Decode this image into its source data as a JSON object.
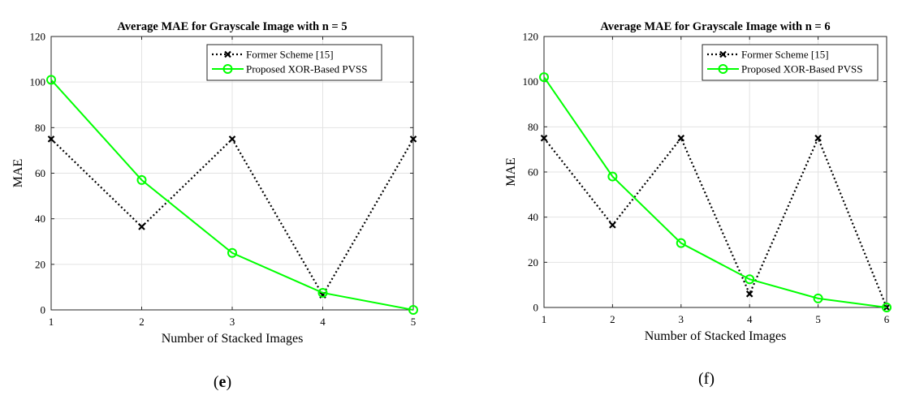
{
  "chart_data": [
    {
      "type": "line",
      "title": "Average MAE for Grayscale Image with n = 5",
      "xlabel": "Number of Stacked Images",
      "ylabel": "MAE",
      "x": [
        1,
        2,
        3,
        4,
        5
      ],
      "xlim": [
        1,
        5
      ],
      "ylim": [
        0,
        120
      ],
      "xticks": [
        "1",
        "2",
        "3",
        "4",
        "5"
      ],
      "yticks": [
        "0",
        "20",
        "40",
        "60",
        "80",
        "100",
        "120"
      ],
      "grid": true,
      "legend_position": "top-right",
      "series": [
        {
          "name": "Former Scheme [15]",
          "values": [
            75,
            36.5,
            75,
            6.5,
            75
          ],
          "color": "#000000",
          "style": "dotted",
          "marker": "x"
        },
        {
          "name": "Proposed XOR-Based PVSS",
          "values": [
            101,
            57,
            25,
            7.5,
            0
          ],
          "color": "#00ff00",
          "style": "solid",
          "marker": "circle"
        }
      ],
      "panel_label": {
        "open": "(",
        "letter": "e",
        "close": ")"
      }
    },
    {
      "type": "line",
      "title": "Average MAE for Grayscale Image with n = 6",
      "xlabel": "Number of Stacked Images",
      "ylabel": "MAE",
      "x": [
        1,
        2,
        3,
        4,
        5,
        6
      ],
      "xlim": [
        1,
        6
      ],
      "ylim": [
        0,
        120
      ],
      "xticks": [
        "1",
        "2",
        "3",
        "4",
        "5",
        "6"
      ],
      "yticks": [
        "0",
        "20",
        "40",
        "60",
        "80",
        "100",
        "120"
      ],
      "grid": true,
      "legend_position": "top-right",
      "series": [
        {
          "name": "Former Scheme [15]",
          "values": [
            75,
            36.5,
            75,
            6,
            75,
            0
          ],
          "color": "#000000",
          "style": "dotted",
          "marker": "x"
        },
        {
          "name": "Proposed XOR-Based PVSS",
          "values": [
            102,
            58,
            28.5,
            12.5,
            4,
            0
          ],
          "color": "#00ff00",
          "style": "solid",
          "marker": "circle"
        }
      ],
      "panel_label": {
        "open": "(",
        "letter": "f",
        "close": ")"
      }
    }
  ]
}
